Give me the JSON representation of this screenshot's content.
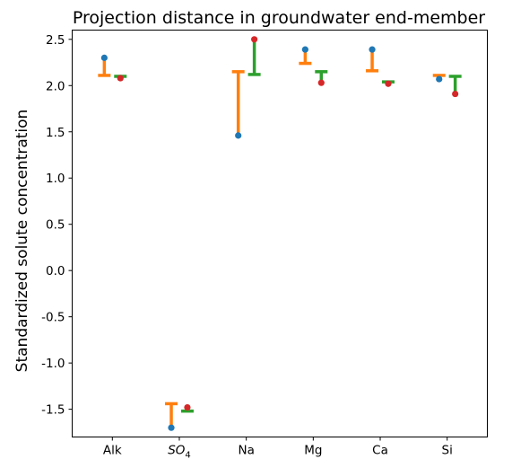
{
  "chart_data": {
    "type": "scatter",
    "title": "Projection distance in groundwater end-member",
    "xlabel": "",
    "ylabel": "Standardized solute concentration",
    "categories": [
      "Alk",
      "SO",
      "Na",
      "Mg",
      "Ca",
      "Si"
    ],
    "category_subscripts": [
      "",
      "4",
      "",
      "",
      "",
      ""
    ],
    "category_italic": [
      false,
      true,
      false,
      false,
      false,
      false
    ],
    "ylim": [
      -1.8,
      2.6
    ],
    "yticks": [
      "-1.5",
      "-1.0",
      "-0.5",
      "0.0",
      "0.5",
      "1.0",
      "1.5",
      "2.0",
      "2.5"
    ],
    "ytick_values": [
      -1.5,
      -1.0,
      -0.5,
      0.0,
      0.5,
      1.0,
      1.5,
      2.0,
      2.5
    ],
    "grid": false,
    "series": [
      {
        "color": "#ff7f0e",
        "bar_offset": -0.12,
        "from": [
          2.3,
          -1.7,
          1.46,
          2.39,
          2.39,
          2.07
        ],
        "to": [
          2.11,
          -1.44,
          2.15,
          2.24,
          2.16,
          2.11
        ]
      },
      {
        "color": "#2ca02c",
        "bar_offset": 0.12,
        "from": [
          2.08,
          -1.48,
          2.5,
          2.03,
          2.02,
          1.91
        ],
        "to": [
          2.1,
          -1.52,
          2.12,
          2.15,
          2.04,
          2.1
        ]
      }
    ],
    "points": [
      {
        "name": "blue",
        "color": "#1f77b4",
        "x_offset": -0.12,
        "values": [
          2.3,
          -1.7,
          1.46,
          2.39,
          2.39,
          2.07
        ]
      },
      {
        "name": "red",
        "color": "#d62728",
        "x_offset": 0.12,
        "values": [
          2.08,
          -1.48,
          2.5,
          2.03,
          2.02,
          1.91
        ]
      }
    ]
  }
}
